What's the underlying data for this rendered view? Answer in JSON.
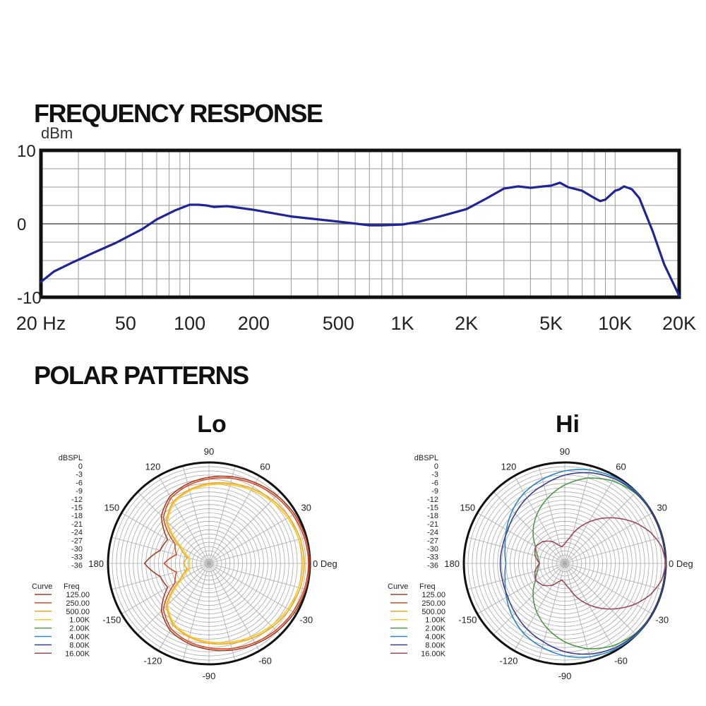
{
  "headings": {
    "frequency": "FREQUENCY RESPONSE",
    "polar": "POLAR PATTERNS"
  },
  "colors": {
    "response_line": "#1f2496",
    "frame": "#111111",
    "grid": "#9a9a9a",
    "curves": {
      "125.00": "#a0402a",
      "250.00": "#d94a22",
      "500.00": "#f2a81d",
      "1.00K": "#f6c92a",
      "2.00K": "#4e9a4a",
      "4.00K": "#2a86c8",
      "8.00K": "#3a3f8a",
      "16.00K": "#9a4a5a"
    }
  },
  "chart_data": [
    {
      "type": "line",
      "title": "FREQUENCY RESPONSE",
      "xlabel": "",
      "ylabel": "dBm",
      "xscale": "log",
      "xlim": [
        20,
        20000
      ],
      "ylim": [
        -10,
        10
      ],
      "xtick_labels": [
        "20 Hz",
        "50",
        "100",
        "200",
        "500",
        "1K",
        "2K",
        "5K",
        "10K",
        "20K"
      ],
      "xtick_values": [
        20,
        50,
        100,
        200,
        500,
        1000,
        2000,
        5000,
        10000,
        20000
      ],
      "ytick_labels": [
        "10",
        "0",
        "-10"
      ],
      "ytick_values": [
        10,
        0,
        -10
      ],
      "grid": true,
      "series": [
        {
          "name": "",
          "x": [
            20,
            23,
            28,
            35,
            45,
            60,
            70,
            85,
            100,
            110,
            120,
            130,
            150,
            200,
            300,
            500,
            700,
            800,
            1000,
            1200,
            1500,
            2000,
            2500,
            3000,
            3500,
            4000,
            5000,
            5500,
            6000,
            7000,
            8000,
            8500,
            9000,
            10000,
            10500,
            11000,
            11500,
            12000,
            13000,
            15000,
            17000,
            20000
          ],
          "y": [
            -7.9,
            -6.5,
            -5.3,
            -4.0,
            -2.6,
            -0.7,
            0.6,
            1.8,
            2.6,
            2.6,
            2.5,
            2.3,
            2.4,
            1.9,
            1.0,
            0.3,
            -0.2,
            -0.2,
            -0.1,
            0.3,
            1.0,
            2.0,
            3.5,
            4.8,
            5.1,
            4.9,
            5.2,
            5.6,
            5.0,
            4.5,
            3.5,
            3.1,
            3.3,
            4.5,
            4.7,
            5.1,
            4.9,
            4.7,
            3.5,
            -1.0,
            -5.5,
            -9.8
          ]
        }
      ]
    },
    {
      "type": "polar",
      "title": "Lo",
      "radial_label": "dBSPL",
      "radial_ticks": [
        "0",
        "-3",
        "-6",
        "-9",
        "-12",
        "-15",
        "-18",
        "-21",
        "-24",
        "-27",
        "-30",
        "-33",
        "-36"
      ],
      "rlim": [
        -36,
        0
      ],
      "angle_labels": [
        "90",
        "60",
        "30",
        "0 Deg",
        "-30",
        "-60",
        "-90",
        "-120",
        "-150",
        "180",
        "150",
        "120"
      ],
      "angle_values": [
        90,
        60,
        30,
        0,
        -30,
        -60,
        -90,
        -120,
        -150,
        180,
        150,
        120
      ],
      "legend": {
        "curve_header": "Curve",
        "freq_header": "Freq",
        "entries": [
          "125.00",
          "250.00",
          "500.00",
          "1.00K",
          "2.00K",
          "4.00K",
          "8.00K",
          "16.00K"
        ]
      },
      "series": [
        {
          "name": "125.00",
          "angle": [
            0,
            15,
            30,
            45,
            60,
            75,
            90,
            105,
            120,
            135,
            150,
            165,
            180,
            195,
            210,
            225,
            240,
            255,
            270,
            285,
            300,
            315,
            330,
            345
          ],
          "db": [
            0,
            -0.3,
            -0.8,
            -1.7,
            -2.8,
            -4.0,
            -5.3,
            -6.6,
            -8.3,
            -12.0,
            -19.0,
            -18.0,
            -13.0,
            -18.0,
            -19.0,
            -12.0,
            -8.3,
            -6.6,
            -5.3,
            -4.0,
            -2.8,
            -1.7,
            -0.8,
            -0.3
          ]
        },
        {
          "name": "250.00",
          "angle": [
            0,
            15,
            30,
            45,
            60,
            75,
            90,
            105,
            120,
            135,
            150,
            165,
            180,
            195,
            210,
            225,
            240,
            255,
            270,
            285,
            300,
            315,
            330,
            345
          ],
          "db": [
            -0.5,
            -0.8,
            -1.4,
            -2.3,
            -3.4,
            -4.6,
            -5.9,
            -7.2,
            -9.0,
            -13.0,
            -22.0,
            -24.0,
            -20.0,
            -24.0,
            -22.0,
            -13.0,
            -9.0,
            -7.2,
            -5.9,
            -4.6,
            -3.4,
            -2.3,
            -1.4,
            -0.8
          ]
        },
        {
          "name": "500.00",
          "angle": [
            0,
            15,
            30,
            45,
            60,
            75,
            90,
            105,
            120,
            135,
            150,
            165,
            180,
            195,
            210,
            225,
            240,
            255,
            270,
            285,
            300,
            315,
            330,
            345
          ],
          "db": [
            -2.0,
            -2.3,
            -3.0,
            -4.0,
            -5.2,
            -6.5,
            -7.5,
            -8.8,
            -10.5,
            -14.5,
            -24.0,
            -28.0,
            -27.0,
            -28.0,
            -24.0,
            -14.5,
            -10.5,
            -8.8,
            -7.5,
            -6.5,
            -5.2,
            -4.0,
            -3.0,
            -2.3
          ]
        },
        {
          "name": "1.00K",
          "angle": [
            0,
            15,
            30,
            45,
            60,
            75,
            90,
            105,
            120,
            135,
            150,
            165,
            180,
            195,
            210,
            225,
            240,
            255,
            270,
            285,
            300,
            315,
            330,
            345
          ],
          "db": [
            -2.6,
            -2.9,
            -3.6,
            -4.6,
            -5.8,
            -7.0,
            -8.0,
            -9.2,
            -11.0,
            -15.0,
            -25.0,
            -29.0,
            -29.0,
            -29.0,
            -25.0,
            -15.0,
            -11.0,
            -9.2,
            -8.0,
            -7.0,
            -5.8,
            -4.6,
            -3.6,
            -2.9
          ]
        }
      ]
    },
    {
      "type": "polar",
      "title": "Hi",
      "radial_label": "dBSPL",
      "radial_ticks": [
        "0",
        "-3",
        "-6",
        "-9",
        "-12",
        "-15",
        "-18",
        "-21",
        "-24",
        "-27",
        "-30",
        "-33",
        "-36"
      ],
      "rlim": [
        -36,
        0
      ],
      "angle_labels": [
        "90",
        "60",
        "30",
        "0 Deg",
        "-30",
        "-60",
        "-90",
        "-120",
        "-150",
        "180",
        "150",
        "120"
      ],
      "angle_values": [
        90,
        60,
        30,
        0,
        -30,
        -60,
        -90,
        -120,
        -150,
        180,
        150,
        120
      ],
      "legend": {
        "curve_header": "Curve",
        "freq_header": "Freq",
        "entries": [
          "125.00",
          "250.00",
          "500.00",
          "1.00K",
          "2.00K",
          "4.00K",
          "8.00K",
          "16.00K"
        ]
      },
      "series": [
        {
          "name": "2.00K",
          "angle": [
            0,
            15,
            30,
            45,
            60,
            75,
            90,
            105,
            120,
            135,
            150,
            165,
            180,
            195,
            210,
            225,
            240,
            255,
            270,
            285,
            300,
            315,
            330,
            345
          ],
          "db": [
            0,
            0,
            0,
            -0.5,
            -2.0,
            -4.5,
            -8.0,
            -12.0,
            -16.0,
            -20.0,
            -24.0,
            -26.0,
            -27.0,
            -26.0,
            -24.0,
            -20.0,
            -16.0,
            -12.0,
            -8.0,
            -4.5,
            -2.0,
            -0.5,
            0,
            0
          ]
        },
        {
          "name": "4.00K",
          "angle": [
            0,
            15,
            30,
            45,
            60,
            75,
            90,
            105,
            120,
            135,
            150,
            165,
            180,
            195,
            210,
            225,
            240,
            255,
            270,
            285,
            300,
            315,
            330,
            345
          ],
          "db": [
            0,
            0,
            0,
            0,
            -0.5,
            -1.5,
            -3.0,
            -5.0,
            -7.0,
            -9.5,
            -12.0,
            -14.0,
            -15.0,
            -14.0,
            -12.0,
            -9.5,
            -7.0,
            -5.0,
            -3.0,
            -1.5,
            -0.5,
            0,
            0,
            0
          ]
        },
        {
          "name": "8.00K",
          "angle": [
            0,
            15,
            30,
            45,
            60,
            75,
            90,
            105,
            120,
            135,
            150,
            165,
            180,
            195,
            210,
            225,
            240,
            255,
            270,
            285,
            300,
            315,
            330,
            345
          ],
          "db": [
            0,
            0,
            0,
            -0.3,
            -1.0,
            -2.5,
            -4.5,
            -7.0,
            -9.0,
            -11.0,
            -12.5,
            -13.0,
            -13.0,
            -13.0,
            -12.5,
            -11.0,
            -9.0,
            -7.0,
            -4.5,
            -2.5,
            -1.0,
            -0.3,
            0,
            0
          ]
        },
        {
          "name": "16.00K",
          "angle": [
            0,
            10,
            20,
            30,
            40,
            50,
            60,
            70,
            80,
            90,
            100,
            110,
            120,
            135,
            150,
            165,
            180,
            195,
            210,
            225,
            240,
            250,
            260,
            270,
            280,
            290,
            300,
            310,
            320,
            330,
            340,
            350
          ],
          "db": [
            0,
            -1.0,
            -3.5,
            -7.0,
            -11.0,
            -15.0,
            -19.0,
            -23.0,
            -27.0,
            -29.0,
            -30.0,
            -29.0,
            -27.0,
            -25.0,
            -24.0,
            -25.0,
            -27.0,
            -25.0,
            -24.0,
            -25.0,
            -27.0,
            -29.0,
            -30.0,
            -29.0,
            -27.0,
            -23.0,
            -19.0,
            -15.0,
            -11.0,
            -7.0,
            -3.5,
            -1.0
          ]
        }
      ]
    }
  ]
}
